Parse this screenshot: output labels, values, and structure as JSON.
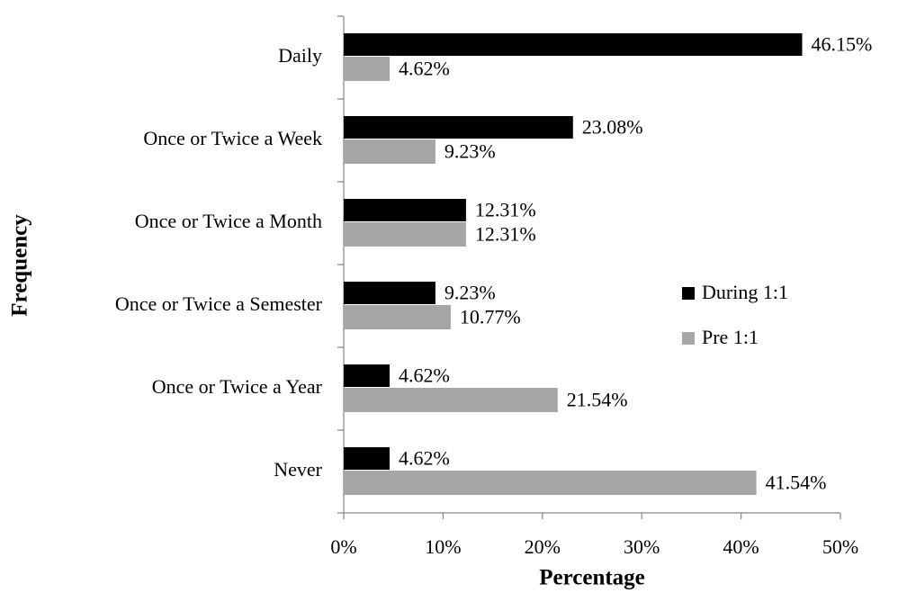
{
  "chart_data": {
    "type": "barh",
    "x_label": "Percentage",
    "y_label": "Frequency",
    "categories": [
      "Daily",
      "Once or Twice a Week",
      "Once or Twice a Month",
      "Once or Twice a Semester",
      "Once or Twice a Year",
      "Never"
    ],
    "series": [
      {
        "name": "During 1:1",
        "color": "#000000",
        "values": [
          46.15,
          23.08,
          12.31,
          9.23,
          4.62,
          4.62
        ],
        "value_labels": [
          "46.15%",
          "23.08%",
          "12.31%",
          "9.23%",
          "4.62%",
          "4.62%"
        ]
      },
      {
        "name": "Pre 1:1",
        "color": "#a6a6a6",
        "values": [
          4.62,
          9.23,
          12.31,
          10.77,
          21.54,
          41.54
        ],
        "value_labels": [
          "4.62%",
          "9.23%",
          "12.31%",
          "10.77%",
          "21.54%",
          "41.54%"
        ]
      }
    ],
    "xlim": [
      0,
      50
    ],
    "xticks": [
      {
        "value": 0,
        "label": "0%"
      },
      {
        "value": 10,
        "label": "10%"
      },
      {
        "value": 20,
        "label": "20%"
      },
      {
        "value": 30,
        "label": "30%"
      },
      {
        "value": 40,
        "label": "40%"
      },
      {
        "value": 50,
        "label": "50%"
      }
    ],
    "legend": "right",
    "grid": false
  }
}
